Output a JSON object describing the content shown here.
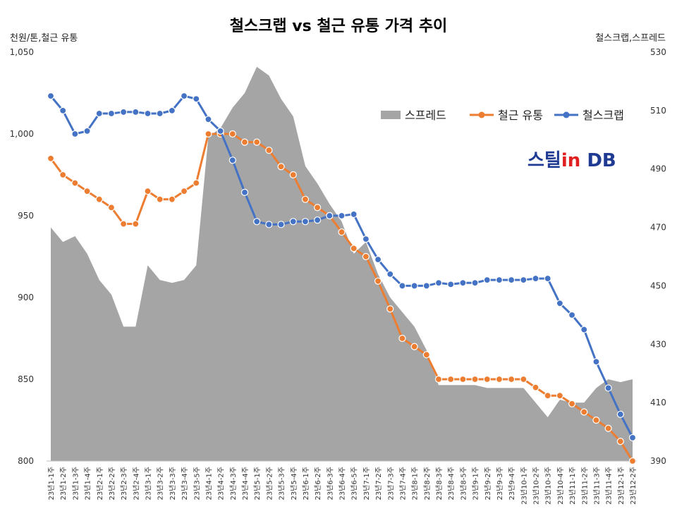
{
  "chart_data": {
    "type": "line",
    "title": "철스크랩 vs 철근 유통 가격 추이",
    "y_left_label": "천원/톤,철근 유통",
    "y_right_label": "철스크랩,스프레드",
    "y_left_ticks": [
      "1,050",
      "1,000",
      "950",
      "900",
      "850",
      "800"
    ],
    "y_right_ticks": [
      "530",
      "510",
      "490",
      "470",
      "450",
      "430",
      "410",
      "390"
    ],
    "ylim_left": [
      800,
      1050
    ],
    "ylim_right": [
      390,
      530
    ],
    "legend_position": "top-right",
    "categories": [
      "23년1-1주",
      "23년1-2주",
      "23년1-3주",
      "23년1-4주",
      "23년2-1주",
      "23년2-2주",
      "23년2-3주",
      "23년2-4주",
      "23년3-1주",
      "23년3-2주",
      "23년3-3주",
      "23년3-4주",
      "23년3-5주",
      "23년4-1주",
      "23년4-2주",
      "23년4-3주",
      "23년4-4주",
      "23년5-1주",
      "23년5-2주",
      "23년5-3주",
      "23년5-4주",
      "23년6-1주",
      "23년6-2주",
      "23년6-3주",
      "23년6-4주",
      "23년6-5주",
      "23년7-1주",
      "23년7-2주",
      "23년7-3주",
      "23년7-4주",
      "23년8-1주",
      "23년8-2주",
      "23년8-3주",
      "23년8-4주",
      "23년8-5주",
      "23년9-1주",
      "23년9-2주",
      "23년9-3주",
      "23년9-4주",
      "23년10-1주",
      "23년10-2주",
      "23년10-3주",
      "23년10-4주",
      "23년11-1주",
      "23년11-2주",
      "23년11-3주",
      "23년11-4주",
      "23년12-1주",
      "23년12-2주"
    ],
    "series": [
      {
        "name": "스프레드",
        "axis": "right",
        "type": "area",
        "color": "#a5a5a5",
        "values": [
          470,
          465,
          467,
          461,
          452,
          447,
          436,
          436,
          457,
          452,
          451,
          452,
          457,
          501,
          504,
          511,
          516,
          525,
          522,
          514,
          508,
          491,
          485,
          478,
          472,
          461,
          465,
          454,
          446,
          441,
          436,
          428,
          416,
          416,
          416,
          416,
          415,
          415,
          415,
          415,
          410,
          405,
          411,
          410,
          410,
          415,
          418,
          417,
          418
        ]
      },
      {
        "name": "철근 유통",
        "axis": "left",
        "type": "line",
        "color": "#ed7d31",
        "values": [
          985,
          975,
          970,
          965,
          960,
          955,
          945,
          945,
          965,
          960,
          960,
          965,
          970,
          1000,
          1000,
          1000,
          995,
          995,
          990,
          980,
          975,
          960,
          955,
          950,
          940,
          930,
          925,
          910,
          893,
          875,
          870,
          865,
          850,
          850,
          850,
          850,
          850,
          850,
          850,
          850,
          845,
          840,
          840,
          835,
          830,
          825,
          820,
          812,
          800
        ]
      },
      {
        "name": "철스크랩",
        "axis": "right",
        "type": "line",
        "color": "#4472c4",
        "values": [
          515,
          510,
          502,
          503,
          509,
          509,
          509.5,
          509.5,
          509,
          509,
          510,
          515,
          514,
          507,
          503,
          493,
          482,
          472,
          471,
          471,
          472,
          472,
          472.5,
          474,
          474,
          474.5,
          466,
          459,
          454,
          450,
          450,
          450,
          451,
          450.5,
          451,
          451,
          452,
          452,
          452,
          452,
          452.5,
          452.5,
          444,
          440,
          435,
          424,
          415,
          406,
          398
        ]
      }
    ]
  },
  "legend": [
    "스프레드",
    "철근 유통",
    "철스크랩"
  ],
  "logo": {
    "part1": "스틸",
    "part2": "in",
    "part3": " DB"
  }
}
